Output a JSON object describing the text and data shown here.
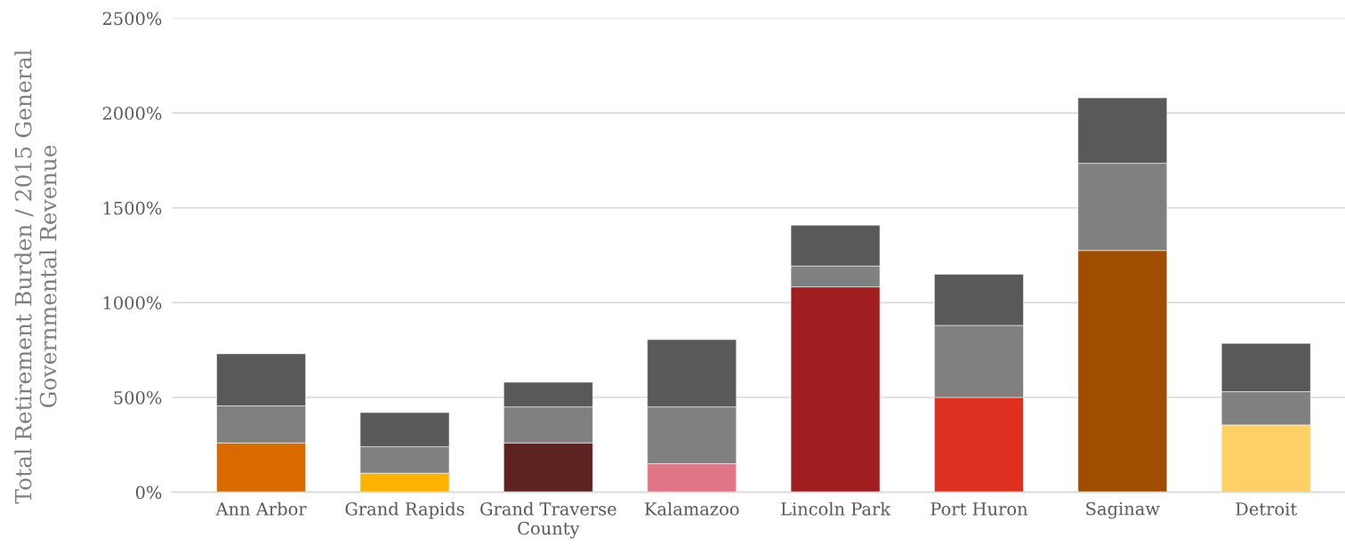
{
  "chart_data": {
    "type": "bar",
    "stacked": true,
    "ylabel": "Total Retirement Burden / 2015 General Governmental Revenue",
    "categories": [
      "Ann Arbor",
      "Grand Rapids",
      "Grand Traverse County",
      "Kalamazoo",
      "Lincoln Park",
      "Port Huron",
      "Saginaw",
      "Detroit"
    ],
    "series": [
      {
        "colors": [
          "#d96a00",
          "#ffb300",
          "#5c2320",
          "#e07587",
          "#a01d20",
          "#dd3020",
          "#a04d00",
          "#ffd066"
        ],
        "values": [
          260,
          100,
          260,
          150,
          1083,
          500,
          1275,
          355
        ]
      },
      {
        "color": "#808080",
        "values": [
          195,
          140,
          190,
          300,
          110,
          380,
          460,
          175
        ]
      },
      {
        "color": "#595959",
        "values": [
          275,
          180,
          130,
          355,
          215,
          270,
          345,
          255
        ]
      }
    ],
    "ylim": [
      0,
      2500
    ],
    "yticks": [
      {
        "value": 0,
        "label": "0%"
      },
      {
        "value": 500,
        "label": "500%"
      },
      {
        "value": 1000,
        "label": "1000%"
      },
      {
        "value": 1500,
        "label": "1500%"
      },
      {
        "value": 2000,
        "label": "2000%"
      },
      {
        "value": 2500,
        "label": "2500%"
      }
    ],
    "grid": "y",
    "legend": false
  }
}
